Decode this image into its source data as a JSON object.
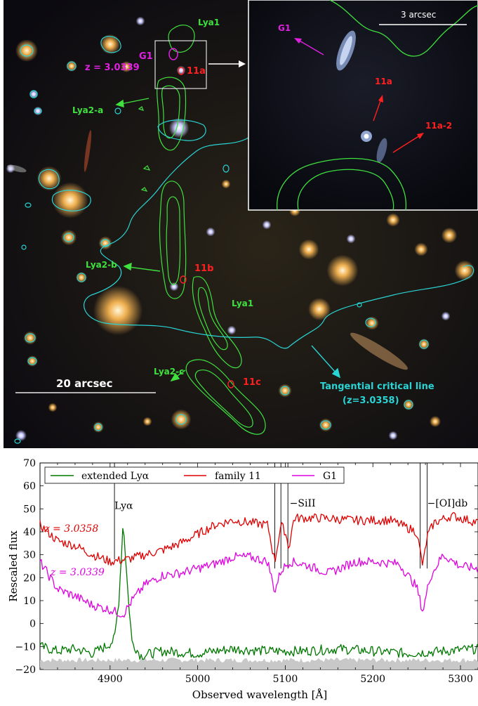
{
  "image_panel": {
    "labels": {
      "lya1_top": "Lya1",
      "g1": "G1",
      "g1_z": "z = 3.0339",
      "l11a": "11a",
      "lya2a": "Lya2-a",
      "lya2b": "Lya2-b",
      "l11b": "11b",
      "lya1_mid": "Lya1",
      "lya2c": "Lya2-c",
      "l11c": "11c",
      "tcl_line1": "Tangential critical line",
      "tcl_line2": "(z=3.0358)",
      "scalebar": "20 arcsec"
    },
    "inset": {
      "scalebar": "3 arcsec",
      "g1": "G1",
      "l11a": "11a",
      "l11a2": "11a-2"
    },
    "colors": {
      "lya_contour": "#3fe03f",
      "critical_line": "#2ad4d4",
      "family11": "#ff2020",
      "g1": "#e020e0"
    }
  },
  "chart_data": {
    "type": "line",
    "xlabel": "Observed wavelength  [Å]",
    "ylabel": "Rescaled flux",
    "xlim": [
      4820,
      5320
    ],
    "ylim": [
      -20,
      70
    ],
    "x_ticks": [
      "4900",
      "5000",
      "5100",
      "5200",
      "5300"
    ],
    "y_ticks": [
      "−20",
      "−10",
      "0",
      "10",
      "20",
      "30",
      "40",
      "50",
      "60",
      "70"
    ],
    "legend_position": "top",
    "series": [
      {
        "name": "extended Lyα",
        "color": "#007800",
        "x": [
          4820,
          4840,
          4860,
          4880,
          4895,
          4905,
          4910,
          4915,
          4920,
          4925,
          4935,
          4960,
          5000,
          5040,
          5080,
          5120,
          5160,
          5200,
          5240,
          5280,
          5320
        ],
        "y": [
          -10,
          -12,
          -11,
          -13,
          -10,
          -7,
          10,
          45,
          15,
          -8,
          -14,
          -12,
          -13,
          -11,
          -12,
          -12,
          -11,
          -12,
          -13,
          -12,
          -11
        ]
      },
      {
        "name": "family 11",
        "color": "#e00000",
        "x": [
          4820,
          4840,
          4860,
          4880,
          4900,
          4920,
          4940,
          4960,
          4980,
          5000,
          5020,
          5040,
          5060,
          5080,
          5088,
          5095,
          5100,
          5104,
          5110,
          5140,
          5180,
          5220,
          5250,
          5257,
          5262,
          5270,
          5290,
          5320
        ],
        "y": [
          43,
          36,
          34,
          30,
          27,
          28,
          30,
          32,
          35,
          39,
          43,
          45,
          44,
          43,
          27,
          43,
          40,
          33,
          46,
          46,
          45,
          45,
          40,
          25,
          38,
          44,
          47,
          44
        ]
      },
      {
        "name": "G1",
        "color": "#e000e0",
        "x": [
          4820,
          4840,
          4860,
          4880,
          4900,
          4915,
          4925,
          4940,
          4960,
          4980,
          5000,
          5020,
          5040,
          5060,
          5080,
          5088,
          5095,
          5105,
          5120,
          5150,
          5180,
          5200,
          5230,
          5250,
          5257,
          5265,
          5280,
          5300,
          5320
        ],
        "y": [
          27,
          15,
          12,
          8,
          6,
          4,
          10,
          17,
          21,
          22,
          24,
          26,
          29,
          29,
          27,
          14,
          23,
          27,
          26,
          22,
          27,
          27,
          26,
          16,
          5,
          20,
          30,
          25,
          24
        ]
      }
    ],
    "annotations": [
      {
        "text": "Lyα",
        "x": 4905,
        "y": 50
      },
      {
        "text": "−SiII",
        "x": 5105,
        "y": 51
      },
      {
        "text": "−[OI]db",
        "x": 5262,
        "y": 51
      },
      {
        "text": "z = 3.0358",
        "x": 4825,
        "y": 40,
        "color": "#e00000"
      },
      {
        "text": "z = 3.0339",
        "x": 4832,
        "y": 21,
        "color": "#e000e0"
      }
    ],
    "line_markers": [
      4905,
      5088,
      5095,
      5103,
      5254,
      5262
    ]
  }
}
